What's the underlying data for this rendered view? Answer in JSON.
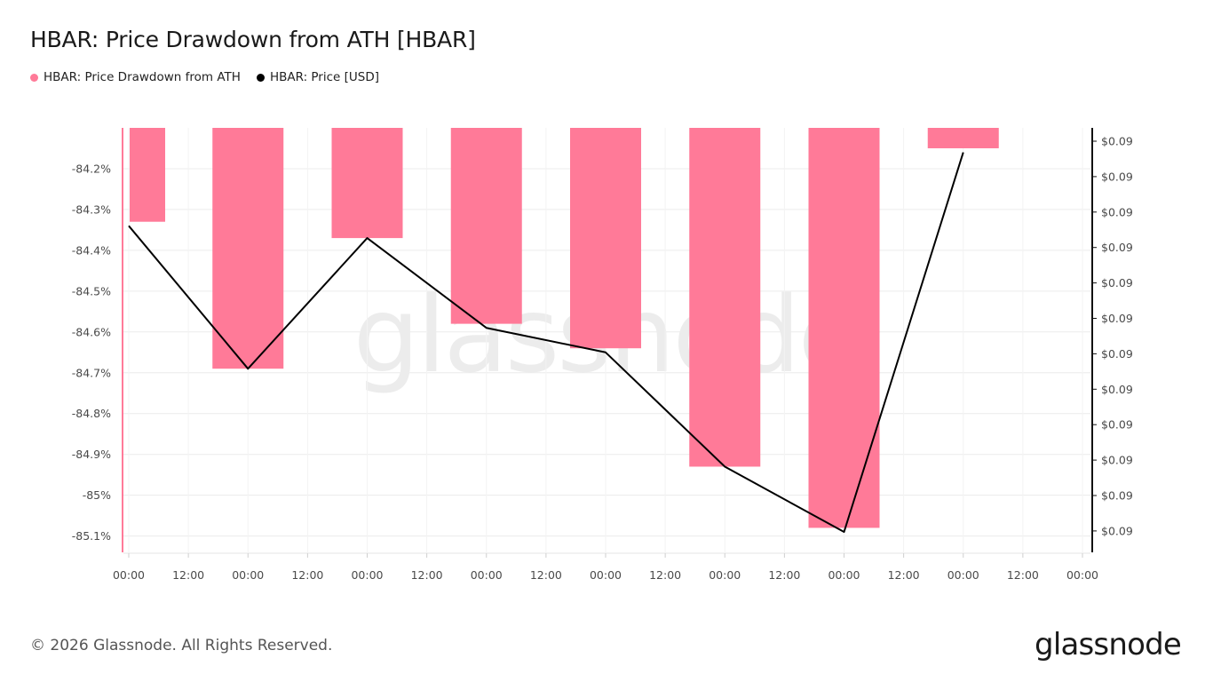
{
  "header": {
    "title": "HBAR: Price Drawdown from ATH [HBAR]"
  },
  "legend": [
    {
      "label": "HBAR: Price Drawdown from ATH",
      "color": "#ff7a98"
    },
    {
      "label": "HBAR: Price [USD]",
      "color": "#000000"
    }
  ],
  "footer": {
    "copyright": "© 2026 Glassnode. All Rights Reserved.",
    "logo": "glassnode"
  },
  "watermark": "glassnode",
  "chart_data": {
    "type": "bar",
    "title": "HBAR: Price Drawdown from ATH [HBAR]",
    "x_tick_labels": [
      "00:00",
      "12:00",
      "00:00",
      "12:00",
      "00:00",
      "12:00",
      "00:00",
      "12:00",
      "00:00",
      "12:00",
      "00:00",
      "12:00",
      "00:00",
      "12:00",
      "00:00",
      "12:00",
      "00:00"
    ],
    "series": [
      {
        "name": "HBAR: Price Drawdown from ATH",
        "type": "bar",
        "axis": "left",
        "color": "#ff7a98",
        "values": [
          -84.33,
          -84.69,
          -84.37,
          -84.58,
          -84.64,
          -84.93,
          -85.08,
          -84.15
        ]
      },
      {
        "name": "HBAR: Price [USD]",
        "type": "line",
        "axis": "right",
        "color": "#000000",
        "values": [
          -84.34,
          -84.69,
          -84.37,
          -84.59,
          -84.65,
          -84.93,
          -85.09,
          -84.16
        ]
      }
    ],
    "left_axis": {
      "ticks": [
        -84.2,
        -84.3,
        -84.4,
        -84.5,
        -84.6,
        -84.7,
        -84.8,
        -84.9,
        -85,
        -85.1
      ],
      "tick_labels": [
        "-84.2%",
        "-84.3%",
        "-84.4%",
        "-84.5%",
        "-84.6%",
        "-84.7%",
        "-84.8%",
        "-84.9%",
        "-85%",
        "-85.1%"
      ],
      "range": [
        -85.14,
        -84.1
      ]
    },
    "right_axis": {
      "tick_labels": [
        "$0.09",
        "$0.09",
        "$0.09",
        "$0.09",
        "$0.09",
        "$0.09",
        "$0.09",
        "$0.09",
        "$0.09",
        "$0.09",
        "$0.09",
        "$0.09"
      ]
    },
    "grid": true,
    "legend_position": "top-left"
  }
}
